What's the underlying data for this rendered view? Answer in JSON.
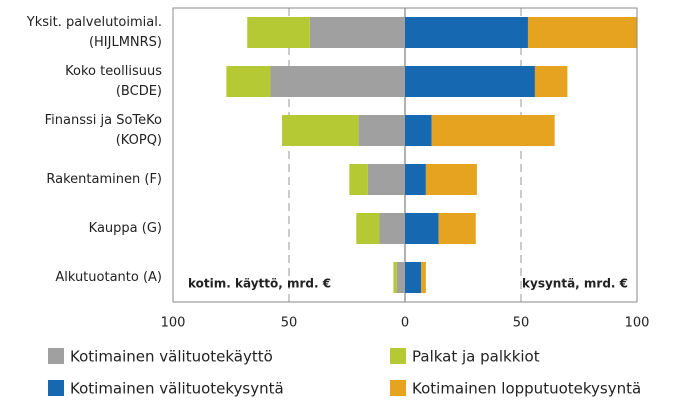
{
  "chart_data": {
    "type": "bar",
    "orientation": "horizontal",
    "stacked": true,
    "categories": [
      [
        "Yksit. palvelutoimial.",
        "(HIJLMNRS)"
      ],
      [
        "Koko teollisuus",
        "(BCDE)"
      ],
      [
        "Finanssi ja SoTeKo",
        "(KOPQ)"
      ],
      [
        "Rakentaminen (F)"
      ],
      [
        "Kauppa (G)"
      ],
      [
        "Alkutuotanto (A)"
      ]
    ],
    "series": [
      {
        "name": "Kotimainen välituotekäyttö",
        "color": "#a0a0a0",
        "values": [
          -41,
          -58,
          -20,
          -16,
          -11,
          -3.5
        ]
      },
      {
        "name": "Palkat ja palkkiot",
        "color": "#b5c934",
        "values": [
          -27,
          -19,
          -33,
          -8,
          -10,
          -1.5
        ]
      },
      {
        "name": "Kotimainen välituotekysyntä",
        "color": "#1668b0",
        "values": [
          53,
          56,
          11.5,
          9,
          14.5,
          7
        ]
      },
      {
        "name": "Kotimainen lopputuotekysyntä",
        "color": "#e5a320",
        "values": [
          47,
          14,
          53,
          22,
          16,
          2
        ]
      }
    ],
    "xlim": [
      -100,
      100
    ],
    "xticks": [
      {
        "value": -100,
        "label": "100"
      },
      {
        "value": -50,
        "label": "50"
      },
      0,
      50,
      100
    ],
    "grid": true,
    "annotations": [
      "kotim. käyttö, mrd. €",
      "kysyntä, mrd. €"
    ]
  }
}
